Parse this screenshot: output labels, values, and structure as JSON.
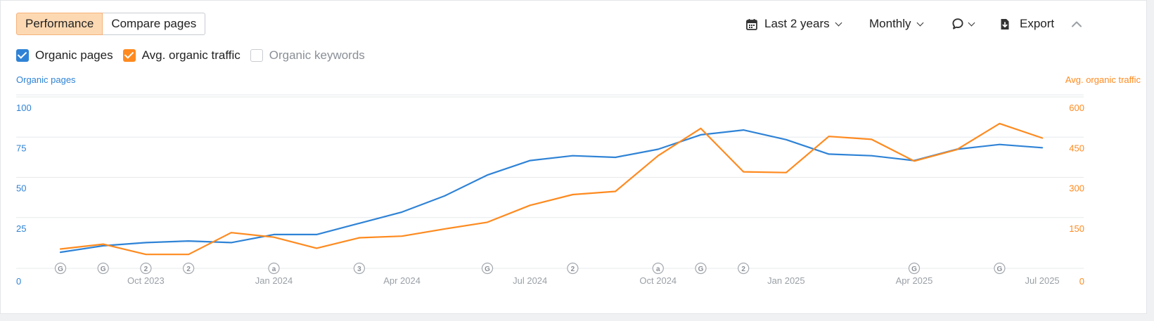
{
  "tabs": [
    {
      "label": "Performance",
      "active": true
    },
    {
      "label": "Compare pages",
      "active": false
    }
  ],
  "toolbar": {
    "date_range": "Last 2 years",
    "granularity": "Monthly",
    "export": "Export"
  },
  "legend": [
    {
      "label": "Organic pages",
      "checked": true,
      "color": "#2f83d6"
    },
    {
      "label": "Avg. organic traffic",
      "checked": true,
      "color": "#ff8a1f"
    },
    {
      "label": "Organic keywords",
      "checked": false,
      "color": "#c9ccd1"
    }
  ],
  "colors": {
    "pages": "#2f83d6",
    "traffic": "#ff8a1f",
    "active_tab_bg": "#fdd9b3",
    "grid": "#e6e8eb",
    "tick": "#9aa0a6"
  },
  "icons": [
    "calendar-icon",
    "chevron-down-icon",
    "comment-icon",
    "export-icon",
    "chevron-up-icon"
  ],
  "chart_data": {
    "type": "line",
    "xlabel": "",
    "ylabel_left": "Organic pages",
    "ylabel_right": "Avg. organic traffic",
    "ylim_left": [
      0,
      100
    ],
    "ylim_right": [
      0,
      600
    ],
    "yticks_left": [
      "0",
      "25",
      "50",
      "75",
      "100"
    ],
    "yticks_right": [
      "0",
      "150",
      "300",
      "450",
      "600"
    ],
    "x": [
      "Aug 2023",
      "Sep 2023",
      "Oct 2023",
      "Nov 2023",
      "Dec 2023",
      "Jan 2024",
      "Feb 2024",
      "Mar 2024",
      "Apr 2024",
      "May 2024",
      "Jun 2024",
      "Jul 2024",
      "Aug 2024",
      "Sep 2024",
      "Oct 2024",
      "Nov 2024",
      "Dec 2024",
      "Jan 2025",
      "Feb 2025",
      "Mar 2025",
      "Apr 2025",
      "May 2025",
      "Jun 2025",
      "Jul 2025"
    ],
    "x_tick_labels": [
      "Oct 2023",
      "Jan 2024",
      "Apr 2024",
      "Jul 2024",
      "Oct 2024",
      "Jan 2025",
      "Apr 2025",
      "Jul 2025"
    ],
    "x_tick_months": [
      "Oct 2023",
      "Jan 2024",
      "Apr 2024",
      "Jul 2024",
      "Oct 2024",
      "Jan 2025",
      "Apr 2025",
      "Jul 2025"
    ],
    "series": [
      {
        "name": "Organic pages",
        "axis": "left",
        "values": [
          10,
          14,
          16,
          17,
          16,
          21,
          21,
          28,
          35,
          45,
          58,
          67,
          70,
          69,
          74,
          83,
          86,
          80,
          71,
          70,
          67,
          74,
          77,
          75
        ]
      },
      {
        "name": "Avg. organic traffic",
        "axis": "right",
        "values": [
          72,
          90,
          52,
          52,
          133,
          116,
          75,
          114,
          120,
          147,
          172,
          235,
          275,
          287,
          420,
          522,
          360,
          357,
          492,
          481,
          400,
          443,
          540,
          486
        ]
      }
    ],
    "annotations": [
      {
        "month": "Aug 2023",
        "label": "G"
      },
      {
        "month": "Sep 2023",
        "label": "G"
      },
      {
        "month": "Oct 2023",
        "label": "2"
      },
      {
        "month": "Nov 2023",
        "label": "2"
      },
      {
        "month": "Jan 2024",
        "label": "a"
      },
      {
        "month": "Mar 2024",
        "label": "3"
      },
      {
        "month": "Jun 2024",
        "label": "G"
      },
      {
        "month": "Aug 2024",
        "label": "2"
      },
      {
        "month": "Oct 2024",
        "label": "a"
      },
      {
        "month": "Nov 2024",
        "label": "G"
      },
      {
        "month": "Dec 2024",
        "label": "2"
      },
      {
        "month": "Apr 2025",
        "label": "G"
      },
      {
        "month": "Jun 2025",
        "label": "G"
      }
    ]
  }
}
